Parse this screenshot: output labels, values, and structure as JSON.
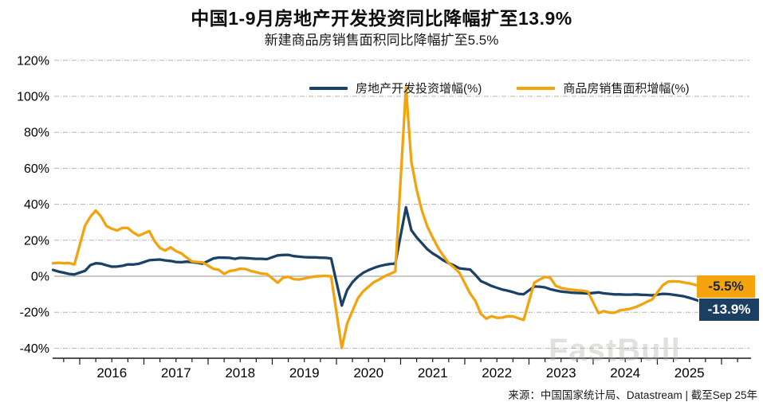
{
  "title": "中国1-9月房地产开发投资同比降幅扩至13.9%",
  "subtitle": "新建商品房销售面积同比降幅扩至5.5%",
  "legend": {
    "investment_label": "房地产开发投资增幅(%)",
    "sales_label": "商品房销售面积增幅(%)"
  },
  "end_labels": {
    "sales": "-5.5%",
    "investment": "-13.9%"
  },
  "watermark": "FastBull",
  "source": "来源：中国国家统计局、Datastream | 截至Sep 25年",
  "colors": {
    "investment": "#1B4265",
    "sales": "#F2A30D",
    "grid": "#B5B5B5",
    "zero_line": "#A6A6A6",
    "axis": "#1A1A1A",
    "sales_label_bg": "#F5A40D",
    "sales_label_text": "#16263E",
    "investment_label_bg": "#1B3E63",
    "investment_label_text": "#FFFFFF"
  },
  "chart_data": {
    "type": "line",
    "x": [
      "2015-08",
      "2015-09",
      "2015-10",
      "2015-11",
      "2015-12",
      "2016-02",
      "2016-03",
      "2016-04",
      "2016-05",
      "2016-06",
      "2016-07",
      "2016-08",
      "2016-09",
      "2016-10",
      "2016-11",
      "2016-12",
      "2017-02",
      "2017-03",
      "2017-04",
      "2017-05",
      "2017-06",
      "2017-07",
      "2017-08",
      "2017-09",
      "2017-10",
      "2017-11",
      "2017-12",
      "2018-02",
      "2018-03",
      "2018-04",
      "2018-05",
      "2018-06",
      "2018-07",
      "2018-08",
      "2018-09",
      "2018-10",
      "2018-11",
      "2018-12",
      "2019-02",
      "2019-03",
      "2019-04",
      "2019-05",
      "2019-06",
      "2019-07",
      "2019-08",
      "2019-09",
      "2019-10",
      "2019-11",
      "2019-12",
      "2020-02",
      "2020-03",
      "2020-04",
      "2020-05",
      "2020-06",
      "2020-07",
      "2020-08",
      "2020-09",
      "2020-10",
      "2020-11",
      "2020-12",
      "2021-02",
      "2021-03",
      "2021-04",
      "2021-05",
      "2021-06",
      "2021-07",
      "2021-08",
      "2021-09",
      "2021-10",
      "2021-11",
      "2021-12",
      "2022-02",
      "2022-03",
      "2022-04",
      "2022-05",
      "2022-06",
      "2022-07",
      "2022-08",
      "2022-09",
      "2022-10",
      "2022-11",
      "2022-12",
      "2023-02",
      "2023-03",
      "2023-04",
      "2023-05",
      "2023-06",
      "2023-07",
      "2023-08",
      "2023-09",
      "2023-10",
      "2023-11",
      "2023-12",
      "2024-02",
      "2024-03",
      "2024-04",
      "2024-05",
      "2024-06",
      "2024-07",
      "2024-08",
      "2024-09",
      "2024-10",
      "2024-11",
      "2024-12",
      "2025-02",
      "2025-03",
      "2025-04",
      "2025-05",
      "2025-06",
      "2025-07",
      "2025-08",
      "2025-09"
    ],
    "series": [
      {
        "key": "investment",
        "name": "房地产开发投资增幅(%)",
        "color": "#1B4265",
        "values": [
          3.5,
          2.6,
          2.0,
          1.3,
          1.0,
          3.0,
          6.2,
          7.2,
          7.0,
          6.1,
          5.3,
          5.4,
          5.8,
          6.6,
          6.5,
          6.9,
          8.9,
          9.1,
          9.3,
          8.8,
          8.5,
          7.9,
          7.8,
          8.1,
          7.8,
          7.5,
          7.0,
          9.9,
          10.4,
          10.3,
          10.2,
          9.7,
          10.2,
          10.1,
          9.9,
          9.7,
          9.7,
          9.5,
          11.6,
          11.8,
          11.9,
          11.2,
          10.9,
          10.6,
          10.5,
          10.5,
          10.3,
          10.2,
          9.9,
          -16.3,
          -7.7,
          -3.3,
          -0.3,
          1.9,
          3.4,
          4.6,
          5.6,
          6.3,
          6.8,
          7.0,
          38.3,
          25.6,
          21.6,
          18.3,
          15.0,
          12.7,
          10.9,
          8.8,
          7.2,
          6.0,
          4.4,
          3.7,
          0.7,
          -2.7,
          -4.0,
          -5.4,
          -6.4,
          -7.4,
          -8.0,
          -8.8,
          -9.8,
          -10.0,
          -5.7,
          -5.8,
          -6.2,
          -7.2,
          -7.9,
          -8.5,
          -8.8,
          -9.1,
          -9.3,
          -9.4,
          -9.6,
          -9.0,
          -9.5,
          -9.8,
          -10.1,
          -10.1,
          -10.2,
          -10.2,
          -10.1,
          -10.3,
          -10.4,
          -10.6,
          -9.8,
          -9.9,
          -10.3,
          -10.7,
          -11.2,
          -12.0,
          -12.9,
          -13.9
        ]
      },
      {
        "key": "sales",
        "name": "商品房销售面积增幅(%)",
        "color": "#F2A30D",
        "values": [
          7.2,
          7.5,
          7.2,
          7.4,
          6.5,
          28.2,
          33.1,
          36.5,
          33.2,
          27.9,
          26.4,
          25.5,
          26.9,
          26.8,
          24.3,
          22.5,
          25.1,
          19.5,
          15.7,
          14.3,
          16.1,
          14.0,
          12.7,
          10.3,
          8.2,
          7.9,
          7.7,
          4.1,
          3.6,
          1.3,
          2.9,
          3.3,
          4.2,
          4.0,
          2.9,
          2.2,
          1.4,
          1.3,
          -3.6,
          -0.9,
          -0.3,
          -1.6,
          -1.8,
          -1.3,
          -0.6,
          -0.1,
          0.1,
          0.2,
          -0.1,
          -39.9,
          -26.3,
          -19.3,
          -12.3,
          -8.4,
          -5.8,
          -3.3,
          -1.8,
          0.0,
          1.3,
          2.6,
          104.9,
          63.8,
          48.1,
          36.3,
          27.7,
          21.5,
          15.9,
          11.3,
          7.3,
          4.8,
          1.9,
          -9.6,
          -13.8,
          -20.9,
          -23.6,
          -22.2,
          -23.1,
          -23.0,
          -22.2,
          -22.3,
          -23.3,
          -24.3,
          -3.6,
          -1.8,
          -0.4,
          -0.9,
          -5.3,
          -6.5,
          -7.1,
          -7.5,
          -7.8,
          -8.0,
          -8.5,
          -20.5,
          -19.4,
          -20.2,
          -20.3,
          -19.0,
          -18.6,
          -18.0,
          -17.1,
          -15.8,
          -14.3,
          -12.9,
          -5.1,
          -3.0,
          -2.8,
          -2.9,
          -3.5,
          -4.0,
          -4.7,
          -5.5
        ]
      }
    ],
    "ylim": [
      -40,
      120
    ],
    "ytick_values": [
      120,
      100,
      80,
      60,
      40,
      20,
      0,
      -20,
      -40
    ],
    "ytick_labels": [
      "120%",
      "100%",
      "80%",
      "60%",
      "40%",
      "20%",
      "0%",
      "-20%",
      "-40%"
    ],
    "xtick_labels": [
      "2016",
      "2017",
      "2018",
      "2019",
      "2020",
      "2021",
      "2022",
      "2023",
      "2024",
      "2025"
    ],
    "grid": "horizontal dash-dot",
    "legend_position": "top-center"
  }
}
